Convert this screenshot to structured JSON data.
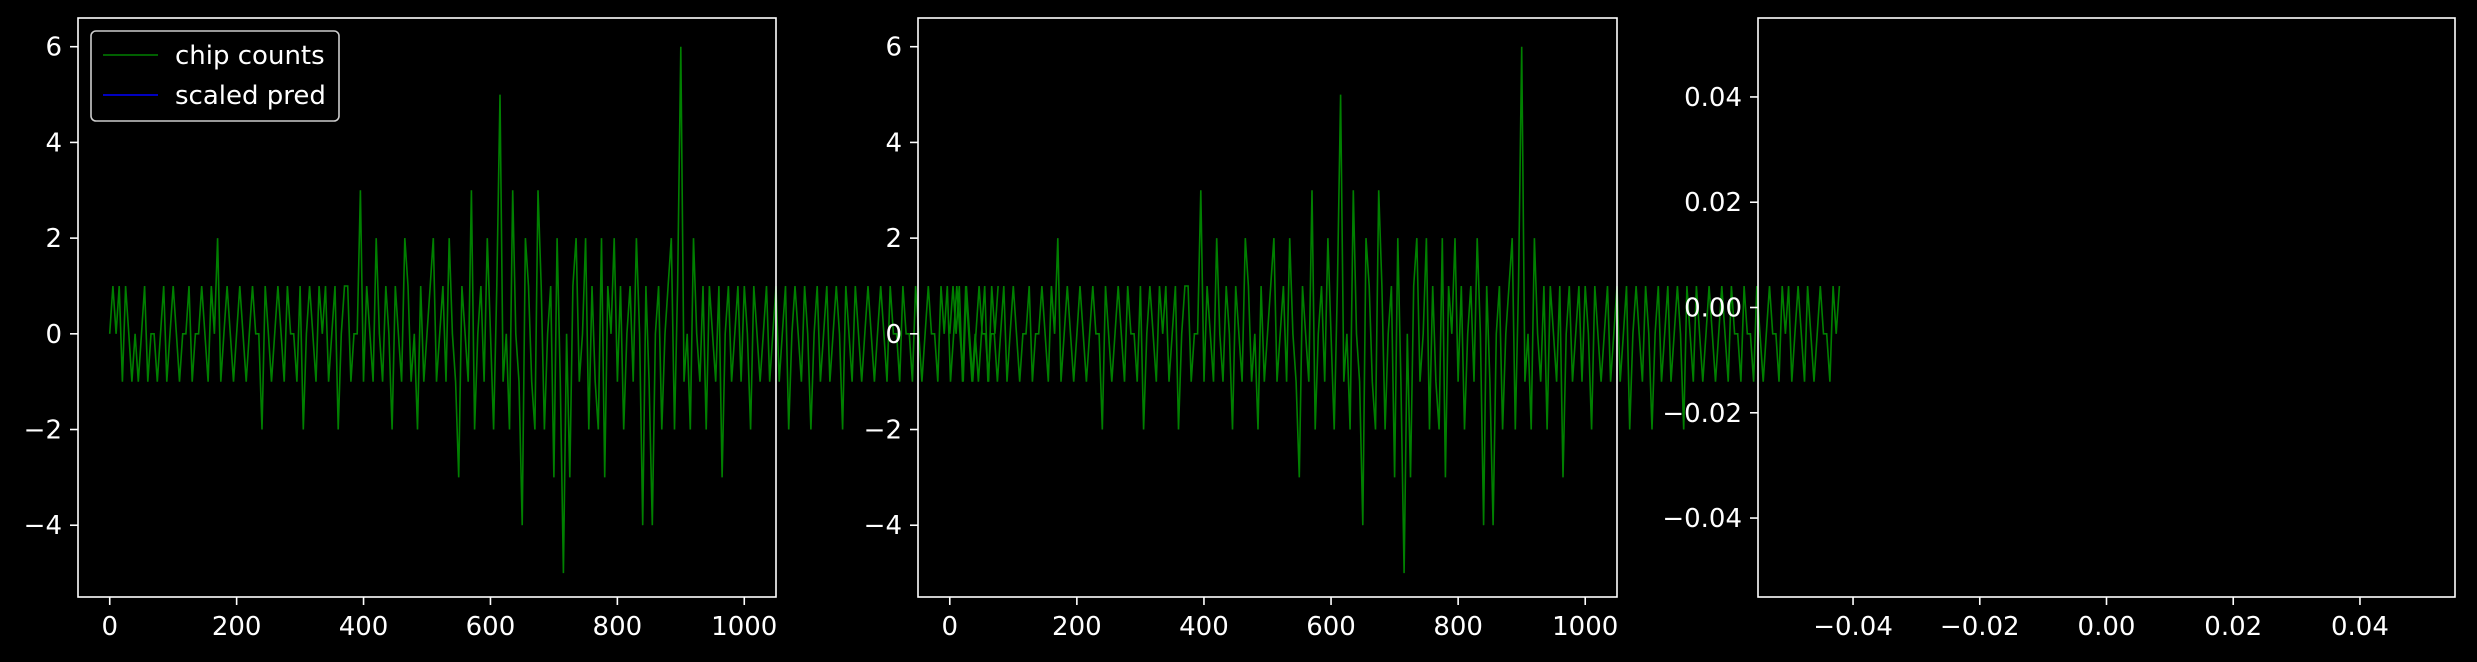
{
  "chart_data": [
    {
      "type": "line",
      "panel": "left",
      "title": "",
      "xlabel": "",
      "ylabel": "",
      "xlim": [
        -50,
        1050
      ],
      "ylim": [
        -5.5,
        6.6
      ],
      "x_ticks": [
        0,
        200,
        400,
        600,
        800,
        1000
      ],
      "x_tick_labels": [
        "0",
        "200",
        "400",
        "600",
        "800",
        "1000"
      ],
      "y_ticks": [
        -4,
        -2,
        0,
        2,
        4,
        6
      ],
      "y_tick_labels": [
        "−4",
        "−2",
        "0",
        "2",
        "4",
        "6"
      ],
      "grid": false,
      "legend": {
        "placement": "top-left",
        "entries": [
          "chip counts",
          "scaled pred"
        ]
      },
      "series": [
        {
          "name": "chip counts",
          "color": "#008000",
          "x_start": 0,
          "x_step": 5,
          "values": [
            0,
            1,
            0,
            1,
            -1,
            1,
            0,
            -1,
            0,
            -1,
            0,
            1,
            -1,
            0,
            0,
            -1,
            0,
            1,
            -1,
            0,
            1,
            0,
            -1,
            0,
            0,
            1,
            -1,
            0,
            0,
            1,
            0,
            -1,
            1,
            0,
            2,
            -1,
            0,
            1,
            0,
            -1,
            0,
            1,
            0,
            -1,
            0,
            1,
            0,
            0,
            -2,
            1,
            0,
            -1,
            0,
            1,
            0,
            -1,
            1,
            0,
            0,
            -1,
            1,
            -2,
            0,
            1,
            0,
            -1,
            1,
            0,
            1,
            -1,
            0,
            1,
            -2,
            0,
            1,
            1,
            -1,
            0,
            0,
            3,
            -1,
            1,
            0,
            -1,
            2,
            0,
            -1,
            1,
            0,
            -2,
            1,
            0,
            -1,
            2,
            1,
            -1,
            0,
            -2,
            1,
            -1,
            0,
            1,
            2,
            -1,
            0,
            1,
            -1,
            2,
            0,
            -1,
            -3,
            1,
            0,
            -1,
            3,
            -2,
            0,
            1,
            -1,
            2,
            0,
            -2,
            1,
            5,
            -1,
            0,
            -2,
            3,
            0,
            -1,
            -4,
            2,
            1,
            -1,
            -2,
            3,
            1,
            -2,
            0,
            1,
            -3,
            2,
            -1,
            -5,
            0,
            -3,
            1,
            2,
            -1,
            0,
            2,
            -2,
            1,
            -1,
            -2,
            2,
            -3,
            1,
            0,
            2,
            -1,
            1,
            -2,
            0,
            1,
            -1,
            2,
            0,
            -4,
            1,
            -1,
            -4,
            0,
            1,
            -2,
            0,
            1,
            2,
            -2,
            1,
            6,
            -1,
            0,
            -2,
            2,
            0,
            -1,
            1,
            -2,
            1,
            0,
            -1,
            1,
            -3,
            0,
            1,
            -1,
            0,
            1,
            -1,
            1,
            0,
            -2,
            1,
            0,
            -1,
            0,
            1,
            -1,
            0,
            1,
            -1,
            0,
            1,
            -2,
            0,
            1,
            0,
            -1,
            1,
            0,
            -2,
            0,
            1,
            -1,
            0,
            1,
            -1,
            0,
            1,
            0,
            -2,
            1,
            0,
            -1,
            1,
            0,
            -1,
            0,
            1,
            0,
            -1,
            0,
            1,
            0,
            -1,
            1,
            0,
            0,
            -1,
            1,
            0,
            0,
            -1,
            1,
            0,
            -1,
            0,
            1,
            0,
            0,
            -1,
            1,
            0,
            1,
            -1,
            0,
            1,
            0,
            -1,
            1,
            0,
            -1,
            0,
            1,
            0,
            0,
            -1,
            1,
            0,
            1
          ]
        },
        {
          "name": "scaled pred",
          "color": "#0000ff",
          "values": []
        }
      ]
    },
    {
      "type": "line",
      "panel": "middle",
      "title": "",
      "xlabel": "",
      "ylabel": "",
      "xlim": [
        -50,
        1050
      ],
      "ylim": [
        -5.5,
        6.6
      ],
      "x_ticks": [
        0,
        200,
        400,
        600,
        800,
        1000
      ],
      "x_tick_labels": [
        "0",
        "200",
        "400",
        "600",
        "800",
        "1000"
      ],
      "y_ticks": [
        -4,
        -2,
        0,
        2,
        4,
        6
      ],
      "y_tick_labels": [
        "−4",
        "−2",
        "0",
        "2",
        "4",
        "6"
      ],
      "grid": false,
      "series": [
        {
          "color": "#008000",
          "x_start": 0,
          "x_step": 5,
          "same_as_panel": "left"
        }
      ]
    },
    {
      "type": "line",
      "panel": "right",
      "title": "",
      "xlabel": "",
      "ylabel": "",
      "xlim": [
        -0.055,
        0.055
      ],
      "ylim": [
        -0.055,
        0.055
      ],
      "x_ticks": [
        -0.04,
        -0.02,
        0,
        0.02,
        0.04
      ],
      "x_tick_labels": [
        "−0.04",
        "−0.02",
        "0.00",
        "0.02",
        "0.04"
      ],
      "y_ticks": [
        -0.04,
        -0.02,
        0,
        0.02,
        0.04
      ],
      "y_tick_labels": [
        "−0.04",
        "−0.02",
        "0.00",
        "0.02",
        "0.04"
      ],
      "grid": false,
      "series": []
    }
  ]
}
